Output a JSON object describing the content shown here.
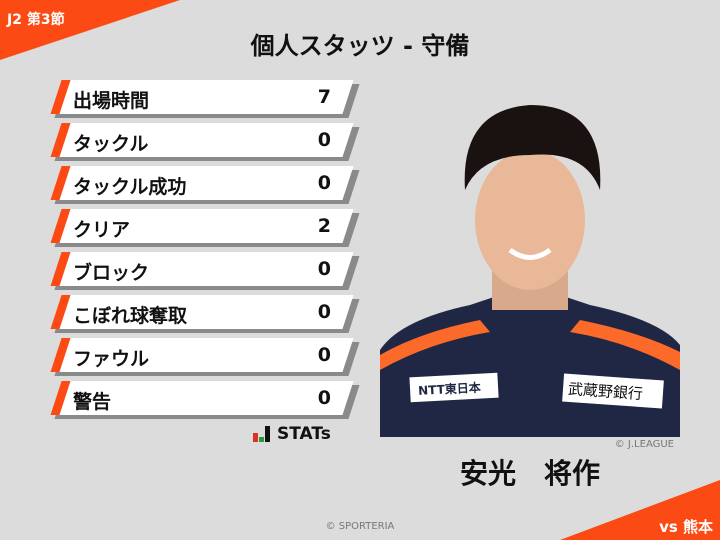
{
  "header": {
    "round": "J2 第3節",
    "title": "個人スタッツ - 守備"
  },
  "stats": [
    {
      "label": "出場時間",
      "value": "7"
    },
    {
      "label": "タックル",
      "value": "0"
    },
    {
      "label": "タックル成功",
      "value": "0"
    },
    {
      "label": "クリア",
      "value": "2"
    },
    {
      "label": "ブロック",
      "value": "0"
    },
    {
      "label": "こぼれ球奪取",
      "value": "0"
    },
    {
      "label": "ファウル",
      "value": "0"
    },
    {
      "label": "警告",
      "value": "0"
    }
  ],
  "brand": {
    "stats_logo": "STATs"
  },
  "player": {
    "name": "安光　将作",
    "photo_credit": "© J.LEAGUE",
    "sponsors": [
      "NTT東日本",
      "武蔵野銀行"
    ]
  },
  "footer": {
    "copyright": "© SPORTERIA",
    "opponent": "vs 熊本"
  },
  "colors": {
    "accent": "#fc4a14",
    "background": "#dcdcdc",
    "shirt": "#1f2744"
  }
}
